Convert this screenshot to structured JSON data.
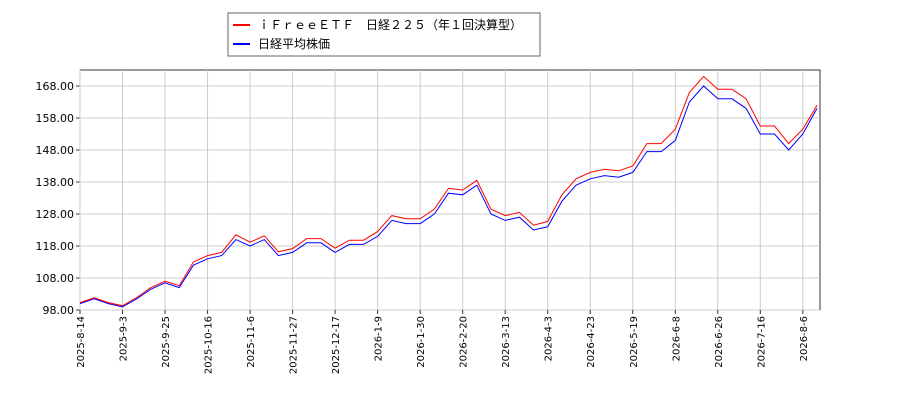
{
  "chart_data": {
    "type": "line",
    "categories": [
      "2025-8-14",
      null,
      null,
      "2025-9-3",
      null,
      null,
      "2025-9-25",
      null,
      null,
      "2025-10-16",
      null,
      null,
      "2025-11-6",
      null,
      null,
      "2025-11-27",
      null,
      null,
      "2025-12-17",
      null,
      null,
      "2026-1-9",
      null,
      null,
      "2026-1-30",
      null,
      null,
      "2026-2-20",
      null,
      null,
      "2026-3-13",
      null,
      null,
      "2026-4-3",
      null,
      null,
      "2026-4-23",
      null,
      null,
      "2026-5-19",
      null,
      null,
      "2026-6-8",
      null,
      null,
      "2026-6-26",
      null,
      null,
      "2026-7-16",
      null,
      null,
      "2026-8-6",
      null
    ],
    "series": [
      {
        "name": "ｉＦｒｅｅＥＴＦ　日経２２５（年１回決算型）",
        "color": "#ff0000",
        "values": [
          100.3,
          101.8,
          100.3,
          99.3,
          101.9,
          105.0,
          107.0,
          105.6,
          113.0,
          115.0,
          116.0,
          121.5,
          119.2,
          121.2,
          116.2,
          117.2,
          120.3,
          120.3,
          117.3,
          119.8,
          119.8,
          122.5,
          127.5,
          126.5,
          126.5,
          129.5,
          136.0,
          135.5,
          138.5,
          129.5,
          127.5,
          128.5,
          124.5,
          125.7,
          134.0,
          139.0,
          141.0,
          142.0,
          141.5,
          143.0,
          150.0,
          150.0,
          154.5,
          166.0,
          171.0,
          167.0,
          167.0,
          164.0,
          155.5,
          155.5,
          150.0,
          154.5,
          162.0
        ]
      },
      {
        "name": "日経平均株価",
        "color": "#0000ff",
        "values": [
          100.0,
          101.5,
          100.0,
          99.0,
          101.5,
          104.5,
          106.5,
          105.0,
          112.0,
          114.0,
          115.0,
          120.0,
          118.0,
          120.0,
          115.0,
          116.0,
          119.0,
          119.0,
          116.0,
          118.5,
          118.5,
          121.0,
          126.0,
          125.0,
          125.0,
          128.0,
          134.5,
          134.0,
          137.0,
          128.0,
          126.0,
          127.0,
          123.0,
          124.0,
          132.0,
          137.0,
          139.0,
          140.0,
          139.5,
          141.0,
          147.5,
          147.5,
          151.0,
          163.0,
          168.0,
          164.0,
          164.0,
          161.0,
          153.0,
          153.0,
          148.0,
          153.0,
          161.0
        ]
      }
    ],
    "ylim": [
      98,
      173
    ],
    "yticks": [
      {
        "value": 98,
        "label": "98.00"
      },
      {
        "value": 108,
        "label": "108.00"
      },
      {
        "value": 118,
        "label": "118.00"
      },
      {
        "value": 128,
        "label": "128.00"
      },
      {
        "value": 138,
        "label": "138.00"
      },
      {
        "value": 148,
        "label": "148.00"
      },
      {
        "value": 158,
        "label": "158.00"
      },
      {
        "value": 168,
        "label": "168.00"
      }
    ],
    "grid": true,
    "legend": "top"
  }
}
